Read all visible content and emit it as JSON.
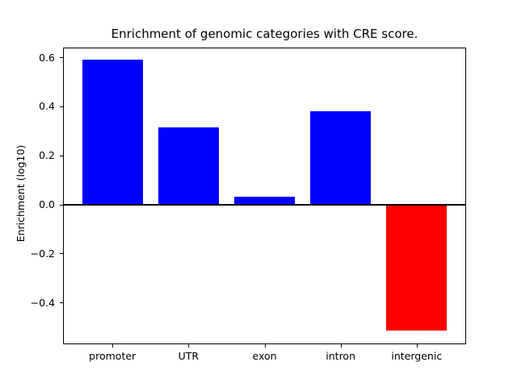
{
  "chart_data": {
    "type": "bar",
    "title": "Enrichment of genomic categories with CRE score.",
    "xlabel": "",
    "ylabel": "Enrichment (log10)",
    "categories": [
      "promoter",
      "UTR",
      "exon",
      "intron",
      "intergenic"
    ],
    "values": [
      0.59,
      0.315,
      0.033,
      0.38,
      -0.515
    ],
    "bar_colors": [
      "#0000ff",
      "#0000ff",
      "#0000ff",
      "#0000ff",
      "#ff0000"
    ],
    "positive_color": "#0000ff",
    "negative_color": "#ff0000",
    "ylim": [
      -0.57,
      0.64
    ],
    "yticks": [
      0.6,
      0.4,
      0.2,
      0.0,
      -0.2,
      -0.4
    ],
    "ytick_labels": [
      "0.6",
      "0.4",
      "0.2",
      "0.0",
      "−0.2",
      "−0.4"
    ],
    "bar_width_fraction": 0.8,
    "x_edge_margin": 0.65,
    "zero_line": true,
    "grid": false,
    "legend": null,
    "background_color": "#ffffff",
    "text_color": "#000000"
  }
}
